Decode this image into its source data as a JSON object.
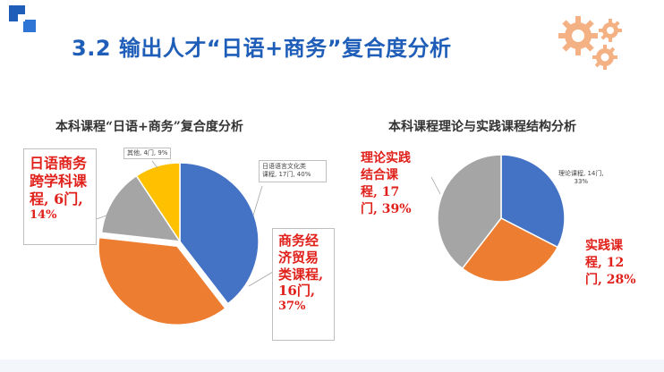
{
  "slide": {
    "title": "3.2  输出人才“日语+商务”复合度分析"
  },
  "colors": {
    "blue": "#4472c4",
    "orange": "#ed7d31",
    "gray": "#a5a5a5",
    "yellow": "#ffc000",
    "accent_red": "#e0211b",
    "title_blue": "#1f5eb8",
    "gear": "#f4b183"
  },
  "icons": {
    "corner_logo": "blue-squares-logo-icon",
    "gears": "gears-icon"
  },
  "chart_data": [
    {
      "type": "pie",
      "title": "本科课程“日语+商务”复合度分析",
      "slices": [
        {
          "label": "日语语言文化类课程",
          "count": 17,
          "percent": 40,
          "color": "#4472c4"
        },
        {
          "label": "商务经济贸易类课程",
          "count": 16,
          "percent": 37,
          "color": "#ed7d31"
        },
        {
          "label": "日语商务跨学科课程",
          "count": 6,
          "percent": 14,
          "color": "#a5a5a5"
        },
        {
          "label": "其他",
          "count": 4,
          "percent": 9,
          "color": "#ffc000"
        }
      ],
      "labels": {
        "language": {
          "line1": "日语语言文化类",
          "line2": "课程, 17门, 40%"
        },
        "business": {
          "line1": "商务经",
          "line2": "济贸易",
          "line3": "类课程,",
          "line4": "16门,",
          "line5": "37%"
        },
        "crossdisc": {
          "line1": "日语商务",
          "line2": "跨学科课",
          "line3": "程, 6门,",
          "line4": "14%"
        },
        "other": {
          "text": "其他, 4门, 9%"
        }
      }
    },
    {
      "type": "pie",
      "title": "本科课程理论与实践课程结构分析",
      "slices": [
        {
          "label": "理论课程",
          "count": 14,
          "percent": 33,
          "color": "#4472c4"
        },
        {
          "label": "实践课程",
          "count": 12,
          "percent": 28,
          "color": "#ed7d31"
        },
        {
          "label": "理论实践结合课程",
          "count": 17,
          "percent": 39,
          "color": "#a5a5a5"
        }
      ],
      "labels": {
        "theory": {
          "line1": "理论课程, 14门,",
          "line2": "33%"
        },
        "practice": {
          "line1": "实践课",
          "line2": "程, 12",
          "line3": "门, 28%"
        },
        "combined": {
          "line1": "理论实践",
          "line2": "结合课",
          "line3": "程, 17",
          "line4": "门, 39%"
        }
      }
    }
  ]
}
